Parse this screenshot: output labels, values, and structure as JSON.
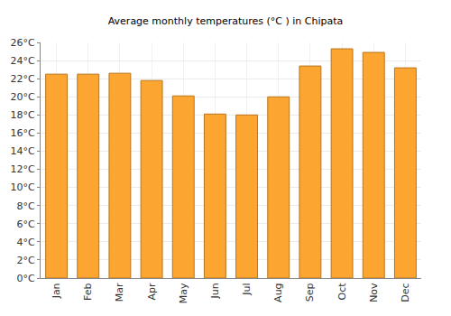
{
  "chart_data": {
    "type": "bar",
    "title": "Average monthly temperatures (°C ) in Chipata",
    "categories": [
      "Jan",
      "Feb",
      "Mar",
      "Apr",
      "May",
      "Jun",
      "Jul",
      "Aug",
      "Sep",
      "Oct",
      "Nov",
      "Dec"
    ],
    "values": [
      22.5,
      22.5,
      22.6,
      21.8,
      20.1,
      18.1,
      18.0,
      20.0,
      23.4,
      25.3,
      24.9,
      23.2
    ],
    "color": "#fca530",
    "ylim": [
      0,
      26
    ],
    "yticks": [
      {
        "value": 0,
        "label": "0°C"
      },
      {
        "value": 2,
        "label": "2°C"
      },
      {
        "value": 4,
        "label": "4°C"
      },
      {
        "value": 6,
        "label": "6°C"
      },
      {
        "value": 8,
        "label": "8°C"
      },
      {
        "value": 10,
        "label": "10°C"
      },
      {
        "value": 12,
        "label": "12°C"
      },
      {
        "value": 14,
        "label": "14°C"
      },
      {
        "value": 16,
        "label": "16°C"
      },
      {
        "value": 18,
        "label": "18°C"
      },
      {
        "value": 20,
        "label": "20°C"
      },
      {
        "value": 22,
        "label": "22°C"
      },
      {
        "value": 24,
        "label": "24°C"
      },
      {
        "value": 26,
        "label": "26°C"
      }
    ],
    "grid": true
  }
}
